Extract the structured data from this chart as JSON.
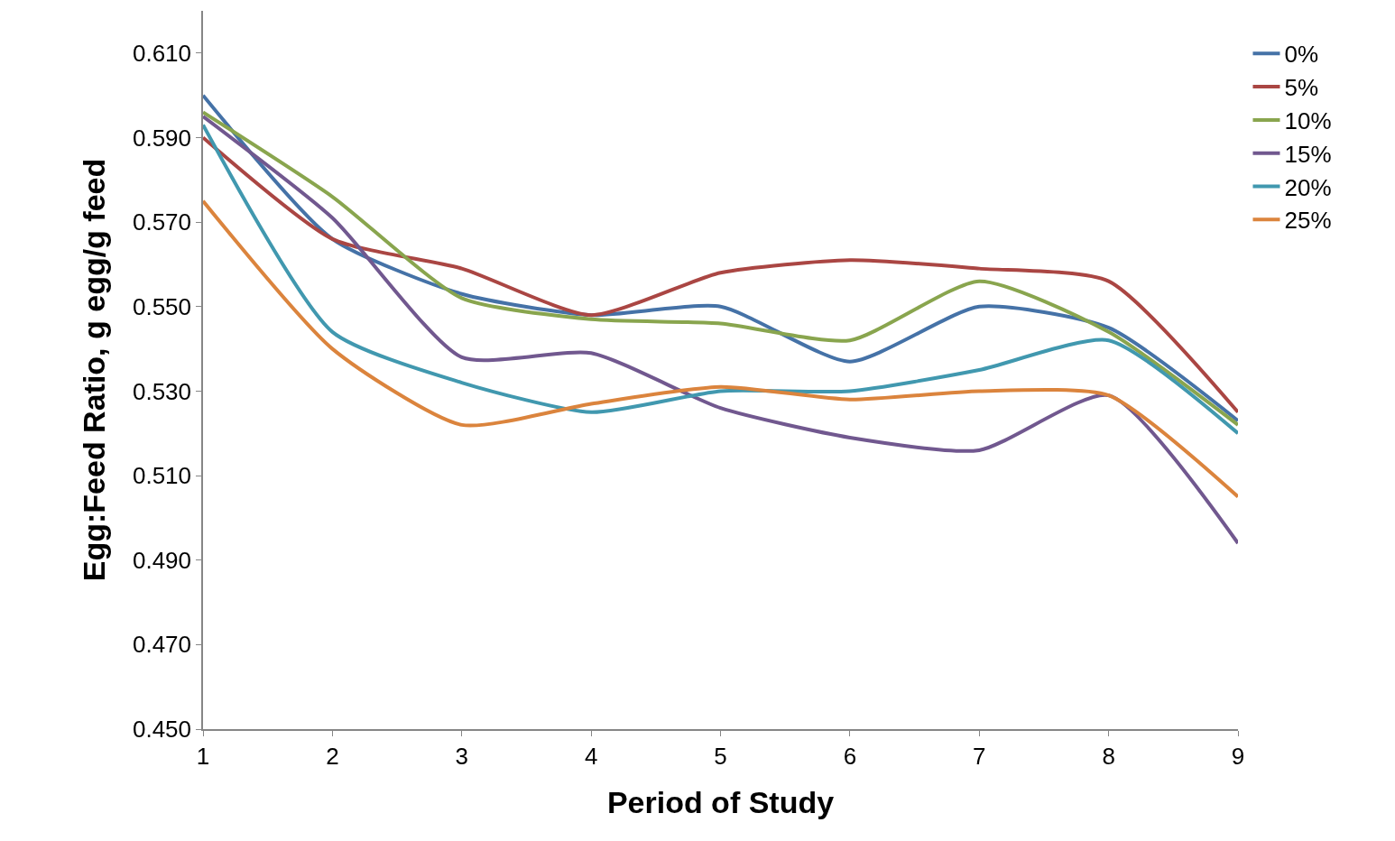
{
  "chart_data": {
    "type": "line",
    "xlabel": "Period of Study",
    "ylabel": "Egg:Feed Ratio, g egg/g feed",
    "x": [
      1,
      2,
      3,
      4,
      5,
      6,
      7,
      8,
      9
    ],
    "series": [
      {
        "name": "0%",
        "color": "#4572a7",
        "values": [
          0.6,
          0.566,
          0.553,
          0.548,
          0.55,
          0.537,
          0.55,
          0.545,
          0.523
        ]
      },
      {
        "name": "5%",
        "color": "#aa4643",
        "values": [
          0.59,
          0.566,
          0.559,
          0.548,
          0.558,
          0.561,
          0.559,
          0.556,
          0.525
        ]
      },
      {
        "name": "10%",
        "color": "#89a54e",
        "values": [
          0.596,
          0.576,
          0.552,
          0.547,
          0.546,
          0.542,
          0.556,
          0.544,
          0.522
        ]
      },
      {
        "name": "15%",
        "color": "#71588f",
        "values": [
          0.595,
          0.571,
          0.538,
          0.539,
          0.526,
          0.519,
          0.516,
          0.529,
          0.494
        ]
      },
      {
        "name": "20%",
        "color": "#4198af",
        "values": [
          0.593,
          0.544,
          0.532,
          0.525,
          0.53,
          0.53,
          0.535,
          0.542,
          0.52
        ]
      },
      {
        "name": "25%",
        "color": "#db843d",
        "values": [
          0.575,
          0.54,
          0.522,
          0.527,
          0.531,
          0.528,
          0.53,
          0.529,
          0.505
        ]
      }
    ],
    "xlim": [
      1,
      9
    ],
    "xticks": [
      1,
      2,
      3,
      4,
      5,
      6,
      7,
      8,
      9
    ],
    "ylim": [
      0.45,
      0.62
    ],
    "yticks": [
      {
        "value": 0.45,
        "label": "0.450"
      },
      {
        "value": 0.47,
        "label": "0.470"
      },
      {
        "value": 0.49,
        "label": "0.490"
      },
      {
        "value": 0.51,
        "label": "0.510"
      },
      {
        "value": 0.53,
        "label": "0.530"
      },
      {
        "value": 0.55,
        "label": "0.550"
      },
      {
        "value": 0.57,
        "label": "0.570"
      },
      {
        "value": 0.59,
        "label": "0.590"
      },
      {
        "value": 0.61,
        "label": "0.610"
      }
    ],
    "legend": "top right",
    "marker": "none",
    "line_style": "solid"
  }
}
